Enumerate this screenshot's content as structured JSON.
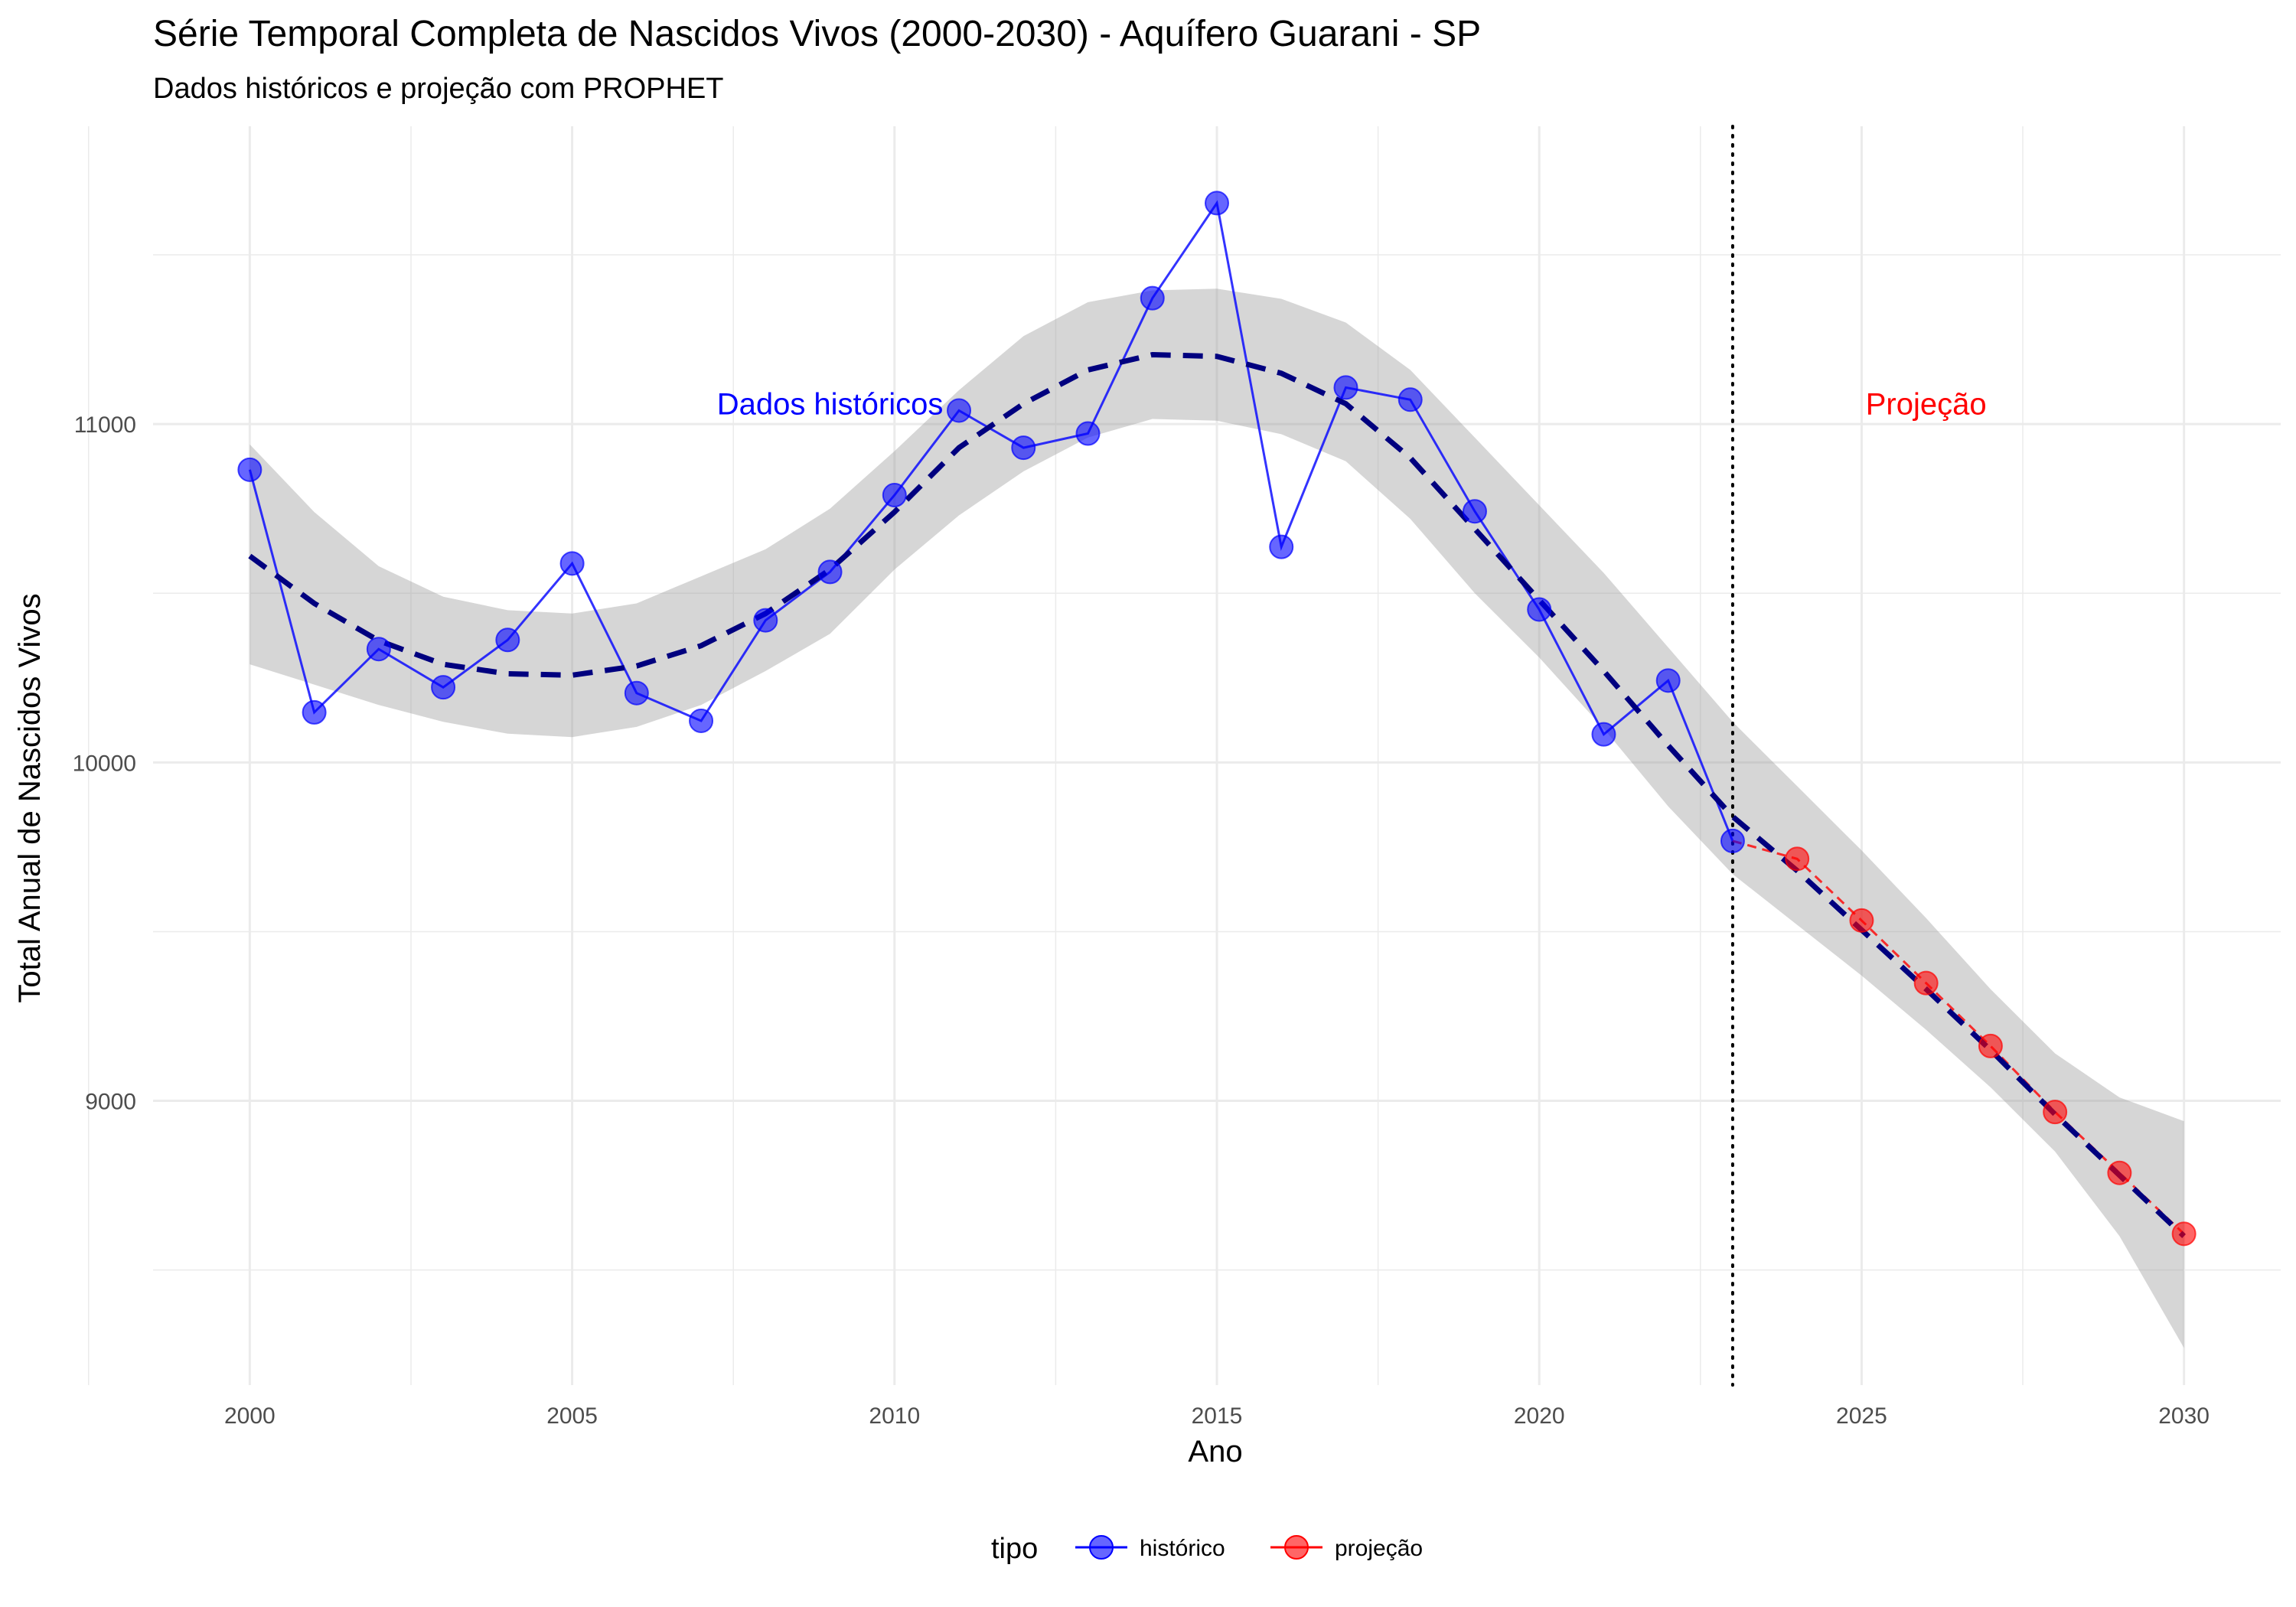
{
  "chart_data": {
    "type": "line",
    "title": "Série Temporal Completa de Nascidos Vivos (2000-2030) -  Aquífero Guarani - SP",
    "subtitle": "Dados históricos e projeção com PROPHET",
    "xlabel": "Ano",
    "ylabel": "Total Anual de Nascidos Vivos",
    "xlim": [
      1998.5,
      2031.5
    ],
    "ylim": [
      8160,
      11880
    ],
    "x_ticks": [
      2000,
      2005,
      2010,
      2015,
      2020,
      2025,
      2030
    ],
    "y_ticks": [
      9000,
      10000,
      11000
    ],
    "grid": true,
    "legend_position": "bottom",
    "legend_title": "tipo",
    "vline_x": 2023,
    "annotations": [
      {
        "text": "Dados históricos",
        "x": 2009,
        "y": 11060,
        "color": "#0000ff"
      },
      {
        "text": "Projeção",
        "x": 2026,
        "y": 11060,
        "color": "#ff0000"
      }
    ],
    "series": [
      {
        "name": "histórico",
        "color": "#0000ff",
        "x": [
          2000,
          2001,
          2002,
          2003,
          2004,
          2005,
          2006,
          2007,
          2008,
          2009,
          2010,
          2011,
          2012,
          2013,
          2014,
          2015,
          2016,
          2017,
          2018,
          2019,
          2020,
          2021,
          2022,
          2023
        ],
        "y": [
          10865,
          10148,
          10335,
          10222,
          10362,
          10588,
          10205,
          10123,
          10420,
          10563,
          10790,
          11040,
          10930,
          10972,
          11372,
          11653,
          10637,
          11108,
          11072,
          10742,
          10452,
          10083,
          10242,
          9768
        ]
      },
      {
        "name": "projeção",
        "color": "#ff0000",
        "x": [
          2023,
          2024,
          2025,
          2026,
          2027,
          2028,
          2029,
          2030
        ],
        "y": [
          9768,
          9715,
          9533,
          9348,
          9162,
          8967,
          8787,
          8607
        ]
      }
    ],
    "trend": {
      "color": "#00007f",
      "x": [
        2000,
        2001,
        2002,
        2003,
        2004,
        2005,
        2006,
        2007,
        2008,
        2009,
        2010,
        2011,
        2012,
        2013,
        2014,
        2015,
        2016,
        2017,
        2018,
        2019,
        2020,
        2021,
        2022,
        2023,
        2024,
        2025,
        2026,
        2027,
        2028,
        2029,
        2030
      ],
      "y": [
        10610,
        10470,
        10360,
        10290,
        10262,
        10258,
        10285,
        10345,
        10440,
        10570,
        10740,
        10930,
        11060,
        11160,
        11205,
        11200,
        11150,
        11060,
        10900,
        10690,
        10480,
        10270,
        10050,
        9840,
        9680,
        9505,
        9330,
        9150,
        8960,
        8780,
        8600
      ],
      "band_upper": [
        10940,
        10740,
        10580,
        10490,
        10450,
        10440,
        10470,
        10550,
        10630,
        10750,
        10920,
        11100,
        11260,
        11360,
        11395,
        11400,
        11370,
        11300,
        11160,
        10960,
        10760,
        10560,
        10340,
        10120,
        9930,
        9740,
        9540,
        9330,
        9140,
        9010,
        8940
      ],
      "band_lower": [
        10290,
        10230,
        10170,
        10120,
        10085,
        10075,
        10105,
        10170,
        10270,
        10380,
        10570,
        10730,
        10860,
        10960,
        11015,
        11010,
        10970,
        10890,
        10720,
        10500,
        10310,
        10100,
        9870,
        9670,
        9520,
        9370,
        9210,
        9040,
        8850,
        8600,
        8270
      ]
    }
  }
}
